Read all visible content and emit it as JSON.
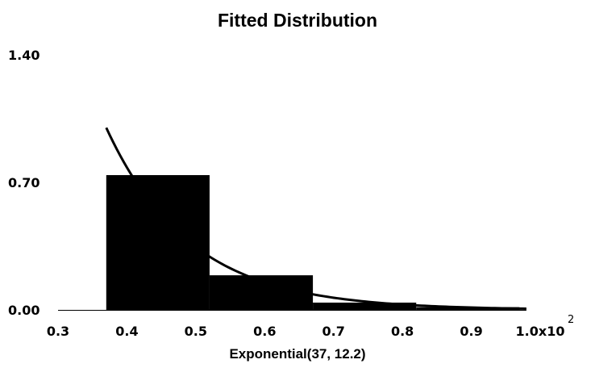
{
  "chart_data": {
    "type": "bar",
    "title": "Fitted Distribution",
    "xlabel": "Exponential(37, 12.2)",
    "ylabel": "",
    "x_ticks": [
      "0.3",
      "0.4",
      "0.5",
      "0.6",
      "0.7",
      "0.8",
      "0.9",
      "1.0x10"
    ],
    "x_tick_values": [
      0.3,
      0.4,
      0.5,
      0.6,
      0.7,
      0.8,
      0.9,
      1.0
    ],
    "x_scale_exponent": "2",
    "y_ticks": [
      "0.00",
      "0.70",
      "1.40"
    ],
    "y_tick_values": [
      0.0,
      0.7,
      1.4
    ],
    "xlim": [
      0.3,
      1.0
    ],
    "ylim": [
      0,
      1.4
    ],
    "grid": false,
    "histogram": {
      "name": "",
      "color": "#000000",
      "bins": [
        {
          "x0": 0.37,
          "x1": 0.52,
          "value": 0.74
        },
        {
          "x0": 0.52,
          "x1": 0.67,
          "value": 0.19
        },
        {
          "x0": 0.67,
          "x1": 0.82,
          "value": 0.04
        },
        {
          "x0": 0.82,
          "x1": 0.97,
          "value": 0.015
        }
      ]
    },
    "fitted_curve": {
      "name": "Exponential(37, 12.2)",
      "color": "#000000",
      "location": 0.37,
      "scale": 0.122,
      "x_end": 0.98
    }
  }
}
